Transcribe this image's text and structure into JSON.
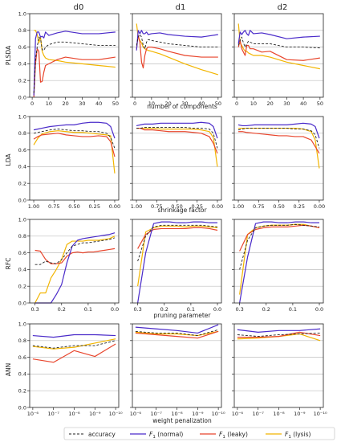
{
  "column_titles": [
    "d0",
    "d1",
    "d2"
  ],
  "row_labels": [
    "PLSDA",
    "LDA",
    "RFC",
    "ANN"
  ],
  "x_labels": [
    "number of components",
    "shrinkage factor",
    "pruning parameter",
    "weight penalization"
  ],
  "y_tick_labels": [
    "0.0",
    "0.2",
    "0.4",
    "0.6",
    "0.8",
    "1.0"
  ],
  "x_tick_labels": [
    [
      "0",
      "10",
      "20",
      "30",
      "40",
      "50"
    ],
    [
      "1.00",
      "0.75",
      "0.50",
      "0.25",
      "0.00"
    ],
    [
      "0.3",
      "0.2",
      "0.1",
      "0.0"
    ],
    [
      "10⁻⁶",
      "10⁻⁷",
      "10⁻⁸",
      "10⁻⁹",
      "10⁻¹⁰"
    ]
  ],
  "legend": {
    "accuracy": "accuracy",
    "f1_normal_main": "F",
    "f1_normal_sub": "1",
    "f1_normal_rest": " (normal)",
    "f1_leaky_main": "F",
    "f1_leaky_sub": "1",
    "f1_leaky_rest": " (leaky)",
    "f1_lysis_main": "F",
    "f1_lysis_sub": "1",
    "f1_lysis_rest": " (lysis)"
  },
  "colors": {
    "accuracy": "#222222",
    "normal": "#4a2bc9",
    "leaky": "#e8452c",
    "lysis": "#f2b500",
    "grid": "#bfbfbf"
  },
  "chart_data": {
    "type": "line",
    "ylim": [
      0,
      1
    ],
    "grid": "horizontal",
    "rows": [
      {
        "name": "PLSDA",
        "xlabel": "number of components",
        "xlim": [
          -1.5,
          52
        ],
        "panels": [
          {
            "title": "d0",
            "x": [
              1,
              2,
              3,
              4,
              5,
              6,
              7,
              8,
              10,
              15,
              20,
              30,
              40,
              50
            ],
            "accuracy": [
              0.05,
              0.45,
              0.6,
              0.72,
              0.7,
              0.57,
              0.56,
              0.6,
              0.63,
              0.66,
              0.66,
              0.64,
              0.62,
              0.62
            ],
            "normal": [
              0.02,
              0.7,
              0.78,
              0.78,
              0.72,
              0.73,
              0.71,
              0.78,
              0.74,
              0.77,
              0.79,
              0.76,
              0.76,
              0.78
            ],
            "leaky": [
              0.0,
              0.4,
              0.58,
              0.55,
              0.18,
              0.19,
              0.3,
              0.38,
              0.4,
              0.45,
              0.48,
              0.45,
              0.45,
              0.48
            ],
            "lysis": [
              0.8,
              0.8,
              0.75,
              0.65,
              0.72,
              0.55,
              0.5,
              0.47,
              0.45,
              0.44,
              0.42,
              0.4,
              0.38,
              0.36
            ]
          },
          {
            "title": "d1",
            "x": [
              1,
              2,
              3,
              4,
              5,
              6,
              7,
              8,
              10,
              15,
              20,
              30,
              40,
              50
            ],
            "accuracy": [
              0.62,
              0.72,
              0.75,
              0.72,
              0.62,
              0.58,
              0.66,
              0.69,
              0.68,
              0.66,
              0.64,
              0.62,
              0.6,
              0.6
            ],
            "normal": [
              0.56,
              0.8,
              0.76,
              0.8,
              0.76,
              0.76,
              0.78,
              0.75,
              0.76,
              0.77,
              0.75,
              0.73,
              0.72,
              0.75
            ],
            "leaky": [
              0.58,
              0.74,
              0.66,
              0.42,
              0.35,
              0.5,
              0.58,
              0.6,
              0.6,
              0.58,
              0.55,
              0.5,
              0.48,
              0.48
            ],
            "lysis": [
              0.88,
              0.72,
              0.68,
              0.65,
              0.6,
              0.58,
              0.57,
              0.56,
              0.55,
              0.52,
              0.48,
              0.4,
              0.33,
              0.27
            ]
          },
          {
            "title": "d2",
            "x": [
              1,
              2,
              3,
              4,
              5,
              6,
              7,
              8,
              10,
              15,
              20,
              30,
              40,
              50
            ],
            "accuracy": [
              0.62,
              0.68,
              0.72,
              0.65,
              0.6,
              0.64,
              0.67,
              0.66,
              0.64,
              0.64,
              0.64,
              0.6,
              0.6,
              0.59
            ],
            "normal": [
              0.64,
              0.78,
              0.75,
              0.78,
              0.8,
              0.76,
              0.74,
              0.8,
              0.76,
              0.77,
              0.75,
              0.7,
              0.72,
              0.73
            ],
            "leaky": [
              0.6,
              0.68,
              0.58,
              0.54,
              0.5,
              0.62,
              0.62,
              0.58,
              0.58,
              0.54,
              0.55,
              0.45,
              0.44,
              0.47
            ],
            "lysis": [
              0.88,
              0.65,
              0.62,
              0.58,
              0.55,
              0.55,
              0.53,
              0.52,
              0.5,
              0.5,
              0.48,
              0.42,
              0.38,
              0.34
            ]
          }
        ]
      },
      {
        "name": "LDA",
        "xlabel": "shrinkage factor",
        "xlim": [
          1.05,
          -0.05
        ],
        "panels": [
          {
            "title": "d0",
            "x": [
              1.0,
              0.95,
              0.9,
              0.8,
              0.7,
              0.6,
              0.5,
              0.4,
              0.3,
              0.2,
              0.1,
              0.05,
              0.0
            ],
            "accuracy": [
              0.8,
              0.81,
              0.82,
              0.84,
              0.85,
              0.84,
              0.83,
              0.83,
              0.82,
              0.82,
              0.8,
              0.75,
              0.62
            ],
            "normal": [
              0.84,
              0.85,
              0.86,
              0.88,
              0.89,
              0.9,
              0.9,
              0.92,
              0.93,
              0.93,
              0.92,
              0.88,
              0.74
            ],
            "leaky": [
              0.73,
              0.76,
              0.78,
              0.79,
              0.8,
              0.78,
              0.77,
              0.76,
              0.76,
              0.77,
              0.76,
              0.7,
              0.52
            ],
            "lysis": [
              0.66,
              0.74,
              0.79,
              0.82,
              0.83,
              0.82,
              0.81,
              0.81,
              0.8,
              0.79,
              0.78,
              0.77,
              0.32
            ]
          },
          {
            "title": "d1",
            "x": [
              1.0,
              0.95,
              0.9,
              0.8,
              0.7,
              0.6,
              0.5,
              0.4,
              0.3,
              0.2,
              0.1,
              0.05,
              0.0
            ],
            "accuracy": [
              0.86,
              0.86,
              0.87,
              0.87,
              0.87,
              0.87,
              0.87,
              0.87,
              0.86,
              0.86,
              0.85,
              0.8,
              0.62
            ],
            "normal": [
              0.89,
              0.9,
              0.91,
              0.91,
              0.92,
              0.92,
              0.92,
              0.92,
              0.92,
              0.93,
              0.92,
              0.88,
              0.74
            ],
            "leaky": [
              0.86,
              0.86,
              0.84,
              0.84,
              0.83,
              0.82,
              0.82,
              0.82,
              0.81,
              0.8,
              0.76,
              0.68,
              0.56
            ],
            "lysis": [
              0.86,
              0.86,
              0.86,
              0.86,
              0.85,
              0.85,
              0.85,
              0.85,
              0.85,
              0.84,
              0.82,
              0.75,
              0.4
            ]
          },
          {
            "title": "d2",
            "x": [
              1.0,
              0.95,
              0.9,
              0.8,
              0.7,
              0.6,
              0.5,
              0.4,
              0.3,
              0.2,
              0.1,
              0.05,
              0.0
            ],
            "accuracy": [
              0.84,
              0.85,
              0.86,
              0.86,
              0.86,
              0.86,
              0.86,
              0.86,
              0.85,
              0.85,
              0.83,
              0.78,
              0.62
            ],
            "normal": [
              0.9,
              0.89,
              0.89,
              0.9,
              0.9,
              0.9,
              0.9,
              0.9,
              0.91,
              0.92,
              0.91,
              0.88,
              0.74
            ],
            "leaky": [
              0.82,
              0.82,
              0.81,
              0.8,
              0.79,
              0.78,
              0.77,
              0.77,
              0.76,
              0.76,
              0.72,
              0.64,
              0.56
            ],
            "lysis": [
              0.86,
              0.86,
              0.86,
              0.86,
              0.86,
              0.86,
              0.86,
              0.86,
              0.86,
              0.85,
              0.82,
              0.72,
              0.38
            ]
          }
        ]
      },
      {
        "name": "RFC",
        "xlabel": "pruning parameter",
        "xlim": [
          0.32,
          -0.015
        ],
        "panels": [
          {
            "title": "d0",
            "x": [
              0.3,
              0.28,
              0.26,
              0.24,
              0.22,
              0.2,
              0.18,
              0.16,
              0.14,
              0.12,
              0.1,
              0.08,
              0.06,
              0.04,
              0.02,
              0.0
            ],
            "accuracy": [
              0.46,
              0.46,
              0.5,
              0.48,
              0.47,
              0.52,
              0.6,
              0.68,
              0.7,
              0.72,
              0.72,
              0.73,
              0.74,
              0.75,
              0.76,
              0.78
            ],
            "normal": [
              0.0,
              0.0,
              0.0,
              0.0,
              0.1,
              0.22,
              0.48,
              0.68,
              0.75,
              0.77,
              0.78,
              0.79,
              0.8,
              0.81,
              0.82,
              0.84
            ],
            "leaky": [
              0.63,
              0.62,
              0.52,
              0.47,
              0.47,
              0.48,
              0.56,
              0.6,
              0.61,
              0.6,
              0.61,
              0.61,
              0.62,
              0.63,
              0.64,
              0.65
            ],
            "lysis": [
              0.0,
              0.12,
              0.12,
              0.3,
              0.4,
              0.52,
              0.7,
              0.74,
              0.74,
              0.74,
              0.75,
              0.75,
              0.75,
              0.76,
              0.77,
              0.8
            ]
          },
          {
            "title": "d1",
            "x": [
              0.3,
              0.27,
              0.24,
              0.21,
              0.18,
              0.15,
              0.12,
              0.09,
              0.06,
              0.03,
              0.0
            ],
            "accuracy": [
              0.5,
              0.8,
              0.91,
              0.93,
              0.93,
              0.93,
              0.93,
              0.93,
              0.93,
              0.92,
              0.91
            ],
            "normal": [
              0.0,
              0.6,
              0.95,
              0.97,
              0.97,
              0.96,
              0.96,
              0.97,
              0.97,
              0.96,
              0.96
            ],
            "leaky": [
              0.65,
              0.82,
              0.88,
              0.89,
              0.89,
              0.89,
              0.89,
              0.9,
              0.9,
              0.89,
              0.87
            ],
            "lysis": [
              0.2,
              0.85,
              0.9,
              0.92,
              0.92,
              0.92,
              0.91,
              0.92,
              0.92,
              0.91,
              0.9
            ]
          },
          {
            "title": "d2",
            "x": [
              0.3,
              0.27,
              0.24,
              0.21,
              0.18,
              0.15,
              0.12,
              0.09,
              0.06,
              0.03,
              0.0
            ],
            "accuracy": [
              0.4,
              0.75,
              0.9,
              0.92,
              0.93,
              0.93,
              0.93,
              0.94,
              0.93,
              0.92,
              0.91
            ],
            "normal": [
              0.0,
              0.55,
              0.95,
              0.97,
              0.97,
              0.96,
              0.96,
              0.97,
              0.97,
              0.96,
              0.96
            ],
            "leaky": [
              0.62,
              0.82,
              0.88,
              0.9,
              0.91,
              0.91,
              0.91,
              0.92,
              0.93,
              0.92,
              0.9
            ],
            "lysis": [
              0.1,
              0.82,
              0.9,
              0.92,
              0.93,
              0.93,
              0.93,
              0.94,
              0.94,
              0.92,
              0.9
            ]
          }
        ]
      },
      {
        "name": "ANN",
        "xlabel": "weight penalization",
        "xlim": [
          5.85,
          10.15
        ],
        "panels": [
          {
            "title": "d0",
            "x": [
              6,
              7,
              8,
              9,
              10
            ],
            "accuracy": [
              0.74,
              0.71,
              0.74,
              0.74,
              0.8
            ],
            "normal": [
              0.86,
              0.84,
              0.87,
              0.87,
              0.86
            ],
            "leaky": [
              0.58,
              0.54,
              0.68,
              0.61,
              0.76
            ],
            "lysis": [
              0.73,
              0.7,
              0.72,
              0.77,
              0.82
            ]
          },
          {
            "title": "d1",
            "x": [
              6,
              7,
              8,
              9,
              10
            ],
            "accuracy": [
              0.91,
              0.89,
              0.89,
              0.86,
              0.93
            ],
            "normal": [
              0.96,
              0.94,
              0.92,
              0.89,
              0.99
            ],
            "leaky": [
              0.89,
              0.87,
              0.85,
              0.83,
              0.91
            ],
            "lysis": [
              0.9,
              0.88,
              0.88,
              0.86,
              0.91
            ]
          },
          {
            "title": "d2",
            "x": [
              6,
              7,
              8,
              9,
              10
            ],
            "accuracy": [
              0.87,
              0.85,
              0.87,
              0.88,
              0.89
            ],
            "normal": [
              0.93,
              0.9,
              0.92,
              0.92,
              0.94
            ],
            "leaky": [
              0.84,
              0.84,
              0.85,
              0.9,
              0.86
            ],
            "lysis": [
              0.82,
              0.83,
              0.85,
              0.88,
              0.8
            ]
          }
        ]
      }
    ]
  }
}
